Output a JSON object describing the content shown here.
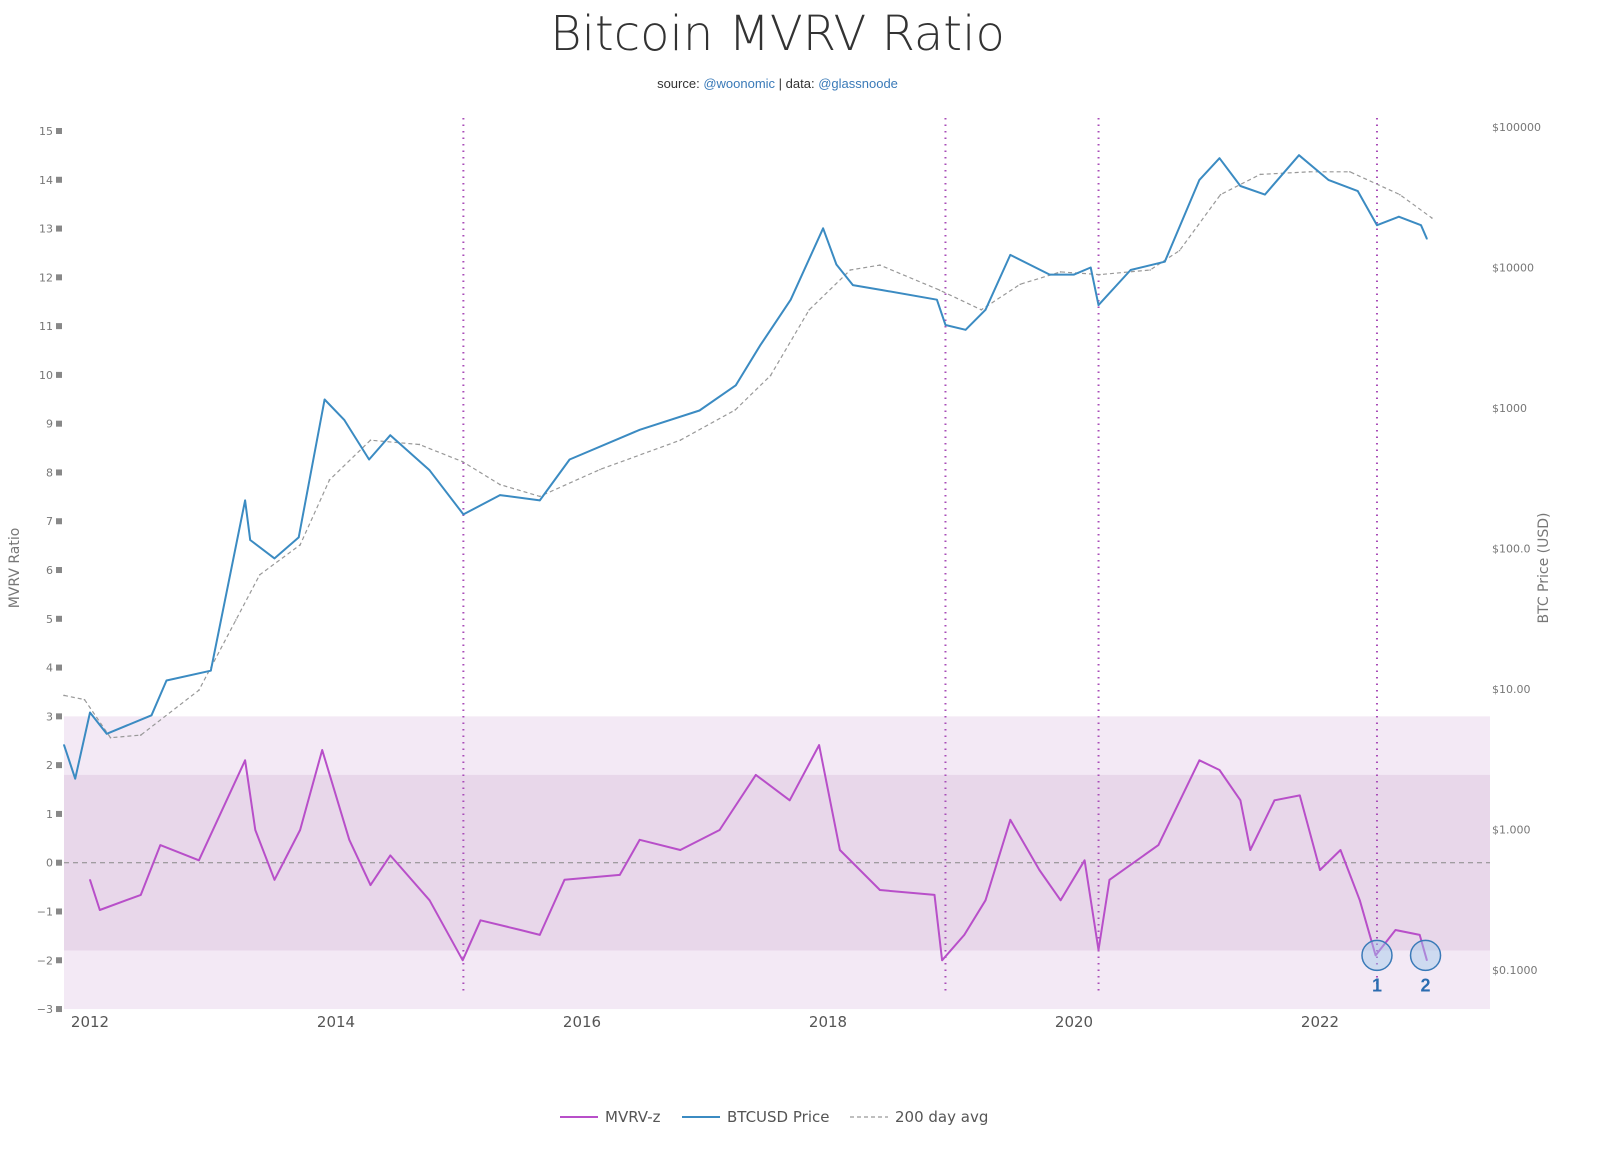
{
  "chart_data": {
    "type": "line",
    "title": "Bitcoin MVRV Ratio",
    "subtitle": {
      "prefix": "source: ",
      "source": "@woonomic",
      "sep": " | data: ",
      "data": "@glassnoode"
    },
    "xlabel": "",
    "x_ticks": [
      "2012",
      "2014",
      "2016",
      "2018",
      "2020",
      "2022"
    ],
    "y_left": {
      "label": "MVRV Ratio",
      "range": [
        -3,
        15
      ],
      "ticks": [
        "15",
        "14",
        "13",
        "12",
        "11",
        "10",
        "9",
        "8",
        "7",
        "6",
        "5",
        "4",
        "3",
        "2",
        "1",
        "0",
        "−1",
        "−2",
        "−3"
      ]
    },
    "y_right": {
      "label": "BTC Price (USD)",
      "scale": "log",
      "range": [
        0.1,
        100000
      ],
      "ticks": [
        "$100000",
        "$10000",
        "$1000",
        "$100.0",
        "$10.00",
        "$1.000",
        "$0.1000"
      ]
    },
    "grid": false,
    "legend_position": "bottom",
    "bands": [
      {
        "from": -3,
        "to": 3,
        "color": "#f3e9f5"
      },
      {
        "from": -1.8,
        "to": 1.8,
        "color": "#e8d7ea"
      }
    ],
    "zero_line": 0,
    "vertical_markers": [
      "2015-01-14",
      "2018-12-15",
      "2020-03-13",
      "2022-06-18"
    ],
    "annotations": [
      {
        "label": "1",
        "date": "2022-06-18",
        "value": -1.9
      },
      {
        "label": "2",
        "date": "2022-11-10",
        "value": -1.9
      }
    ],
    "series": [
      {
        "name": "MVRV-z",
        "axis": "left",
        "color": "#b84fc9",
        "style": "solid",
        "points": [
          [
            "2012-01-01",
            -0.35
          ],
          [
            "2012-01-30",
            -0.97
          ],
          [
            "2012-05-30",
            -0.66
          ],
          [
            "2012-07-27",
            0.36
          ],
          [
            "2012-11-20",
            0.05
          ],
          [
            "2013-04-05",
            2.1
          ],
          [
            "2013-05-05",
            0.67
          ],
          [
            "2013-07-01",
            -0.35
          ],
          [
            "2013-09-16",
            0.67
          ],
          [
            "2013-11-21",
            2.31
          ],
          [
            "2014-02-10",
            0.47
          ],
          [
            "2014-04-12",
            -0.46
          ],
          [
            "2014-06-10",
            0.15
          ],
          [
            "2014-10-05",
            -0.77
          ],
          [
            "2015-01-12",
            -2.0
          ],
          [
            "2015-03-04",
            -1.18
          ],
          [
            "2015-07-01",
            -1.38
          ],
          [
            "2015-08-28",
            -1.48
          ],
          [
            "2015-11-10",
            -0.35
          ],
          [
            "2016-04-22",
            -0.25
          ],
          [
            "2016-06-20",
            0.47
          ],
          [
            "2016-10-19",
            0.26
          ],
          [
            "2017-02-14",
            0.67
          ],
          [
            "2017-05-30",
            1.8
          ],
          [
            "2017-09-09",
            1.28
          ],
          [
            "2017-12-05",
            2.41
          ],
          [
            "2018-02-06",
            0.26
          ],
          [
            "2018-06-03",
            -0.56
          ],
          [
            "2018-11-13",
            -0.66
          ],
          [
            "2018-12-05",
            -2.0
          ],
          [
            "2019-02-10",
            -1.48
          ],
          [
            "2019-04-12",
            -0.77
          ],
          [
            "2019-06-25",
            0.88
          ],
          [
            "2019-09-20",
            -0.15
          ],
          [
            "2019-11-22",
            -0.77
          ],
          [
            "2020-02-02",
            0.05
          ],
          [
            "2020-03-13",
            -1.79
          ],
          [
            "2020-04-15",
            -0.35
          ],
          [
            "2020-09-08",
            0.36
          ],
          [
            "2021-01-08",
            2.1
          ],
          [
            "2021-03-07",
            1.9
          ],
          [
            "2021-05-08",
            1.28
          ],
          [
            "2021-06-07",
            0.26
          ],
          [
            "2021-08-18",
            1.28
          ],
          [
            "2021-11-02",
            1.38
          ],
          [
            "2022-01-01",
            -0.15
          ],
          [
            "2022-03-01",
            0.26
          ],
          [
            "2022-04-28",
            -0.77
          ],
          [
            "2022-06-14",
            -1.9
          ],
          [
            "2022-08-12",
            -1.38
          ],
          [
            "2022-10-23",
            -1.48
          ],
          [
            "2022-11-14",
            -2.0
          ]
        ]
      },
      {
        "name": "BTCUSD Price",
        "axis": "right",
        "color": "#3b8bc2",
        "style": "solid",
        "points": [
          [
            "2011-10-15",
            4
          ],
          [
            "2011-11-18",
            2.3
          ],
          [
            "2012-01-01",
            6.8
          ],
          [
            "2012-02-20",
            4.8
          ],
          [
            "2012-07-01",
            6.5
          ],
          [
            "2012-08-15",
            11.5
          ],
          [
            "2012-12-25",
            13.5
          ],
          [
            "2013-04-05",
            220
          ],
          [
            "2013-04-20",
            115
          ],
          [
            "2013-07-01",
            85
          ],
          [
            "2013-09-12",
            120
          ],
          [
            "2013-11-28",
            1150
          ],
          [
            "2014-01-26",
            820
          ],
          [
            "2014-04-08",
            430
          ],
          [
            "2014-06-10",
            640
          ],
          [
            "2014-10-05",
            360
          ],
          [
            "2015-01-14",
            175
          ],
          [
            "2015-05-01",
            240
          ],
          [
            "2015-08-28",
            220
          ],
          [
            "2015-11-25",
            430
          ],
          [
            "2016-06-20",
            700
          ],
          [
            "2016-12-15",
            960
          ],
          [
            "2017-04-01",
            1450
          ],
          [
            "2017-06-13",
            2800
          ],
          [
            "2017-09-12",
            5900
          ],
          [
            "2017-12-17",
            19000
          ],
          [
            "2018-01-26",
            10500
          ],
          [
            "2018-03-14",
            7500
          ],
          [
            "2018-06-10",
            6900
          ],
          [
            "2018-11-20",
            5900
          ],
          [
            "2018-12-15",
            3900
          ],
          [
            "2019-02-14",
            3600
          ],
          [
            "2019-04-12",
            5000
          ],
          [
            "2019-06-25",
            12300
          ],
          [
            "2019-10-20",
            8900
          ],
          [
            "2020-01-01",
            8900
          ],
          [
            "2020-02-20",
            10000
          ],
          [
            "2020-03-13",
            5400
          ],
          [
            "2020-06-17",
            9600
          ],
          [
            "2020-09-27",
            11000
          ],
          [
            "2021-01-08",
            42000
          ],
          [
            "2021-03-07",
            60000
          ],
          [
            "2021-05-08",
            38000
          ],
          [
            "2021-07-20",
            33000
          ],
          [
            "2021-10-30",
            63000
          ],
          [
            "2022-01-26",
            42000
          ],
          [
            "2022-04-22",
            35000
          ],
          [
            "2022-06-18",
            20000
          ],
          [
            "2022-08-22",
            23000
          ],
          [
            "2022-10-27",
            20000
          ],
          [
            "2022-11-14",
            16000
          ]
        ]
      },
      {
        "name": "200 day avg",
        "axis": "right",
        "color": "#999999",
        "style": "dashed",
        "points": [
          [
            "2011-10-15",
            9
          ],
          [
            "2011-12-15",
            8.4
          ],
          [
            "2012-03-01",
            4.5
          ],
          [
            "2012-05-30",
            4.7
          ],
          [
            "2012-11-20",
            9.8
          ],
          [
            "2013-03-08",
            31
          ],
          [
            "2013-05-18",
            65
          ],
          [
            "2013-09-16",
            106
          ],
          [
            "2013-12-12",
            308
          ],
          [
            "2014-04-12",
            590
          ],
          [
            "2014-09-05",
            550
          ],
          [
            "2015-01-12",
            415
          ],
          [
            "2015-05-01",
            285
          ],
          [
            "2015-08-28",
            235
          ],
          [
            "2016-02-24",
            365
          ],
          [
            "2016-10-19",
            590
          ],
          [
            "2017-03-30",
            970
          ],
          [
            "2017-07-13",
            1700
          ],
          [
            "2017-11-06",
            5000
          ],
          [
            "2018-03-06",
            9600
          ],
          [
            "2018-06-03",
            10400
          ],
          [
            "2018-11-28",
            6900
          ],
          [
            "2019-03-30",
            5000
          ],
          [
            "2019-07-24",
            7600
          ],
          [
            "2019-11-22",
            9300
          ],
          [
            "2020-03-17",
            8900
          ],
          [
            "2020-08-14",
            9600
          ],
          [
            "2020-11-10",
            13200
          ],
          [
            "2021-03-10",
            33000
          ],
          [
            "2021-07-06",
            46000
          ],
          [
            "2021-12-01",
            48000
          ],
          [
            "2022-03-29",
            48000
          ],
          [
            "2022-08-25",
            33000
          ],
          [
            "2022-11-29",
            22500
          ]
        ]
      }
    ]
  }
}
